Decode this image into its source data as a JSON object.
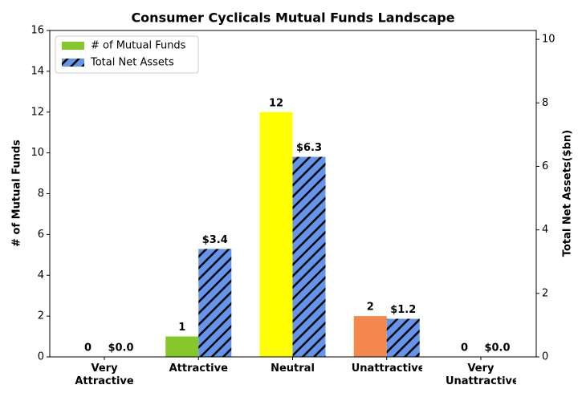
{
  "chart_data": {
    "type": "bar",
    "title": "Consumer Cyclicals Mutual Funds Landscape",
    "y_label": "# of Mutual Funds",
    "y2_label": "Total Net Assets($bn)",
    "categories": [
      "Very Attractive",
      "Attractive",
      "Neutral",
      "Unattractive",
      "Very Unattractive"
    ],
    "series": [
      {
        "name": "# of Mutual Funds",
        "color": "#84c82c",
        "colors": [
          "#1a9850",
          "#84c82c",
          "#ffff00",
          "#f4874b",
          "#d73027"
        ],
        "values": [
          0,
          1,
          12,
          2,
          0
        ]
      },
      {
        "name": "Total Net Assets",
        "color": "#6495ed",
        "hatch": true,
        "axis": "y2",
        "values": [
          0.0,
          3.4,
          6.3,
          1.2,
          0.0
        ],
        "value_labels": [
          "$0.0",
          "$3.4",
          "$6.3",
          "$1.2",
          "$0.0"
        ]
      }
    ],
    "ylim": [
      0,
      16
    ],
    "yticks": [
      0,
      2,
      4,
      6,
      8,
      10,
      12,
      14,
      16
    ],
    "y2lim": [
      0,
      10.28
    ],
    "y2ticks": [
      0,
      2,
      4,
      6,
      8,
      10
    ],
    "legend": "upper left"
  }
}
